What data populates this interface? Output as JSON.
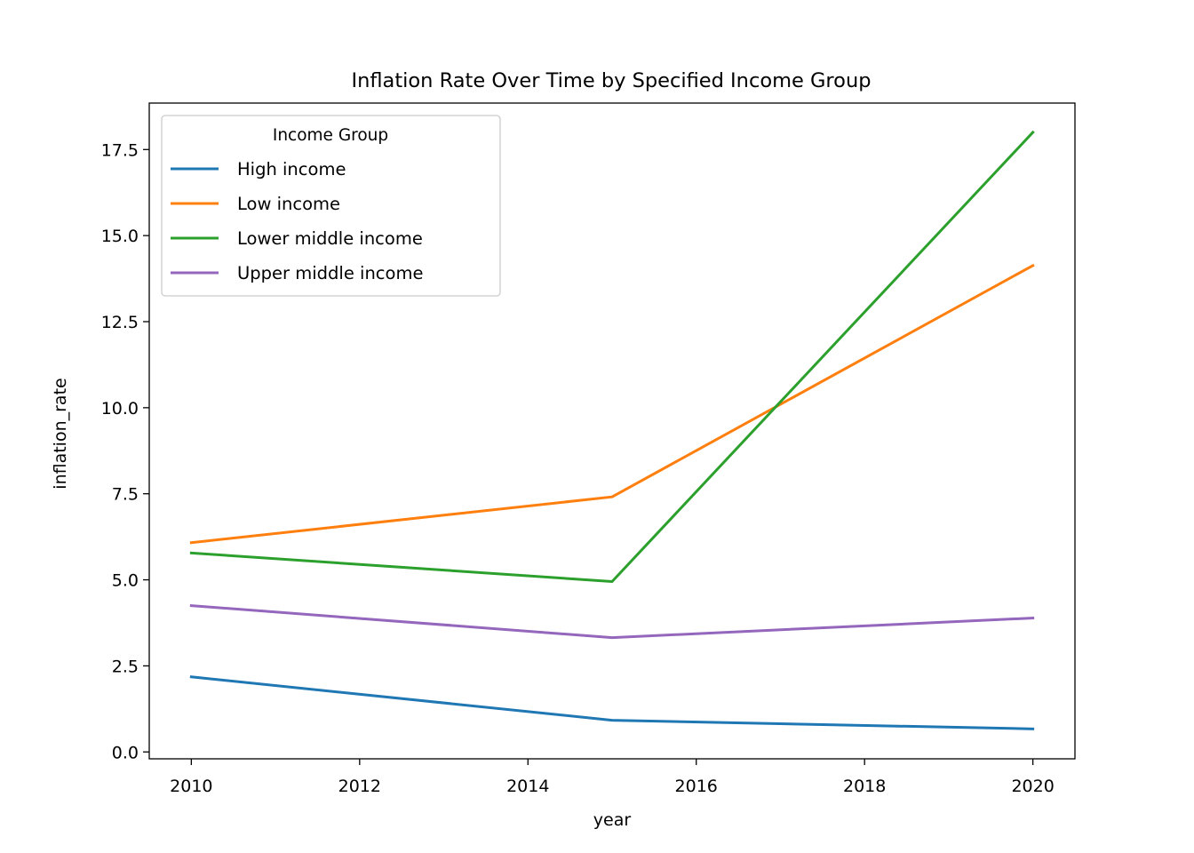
{
  "chart_data": {
    "type": "line",
    "title": "Inflation Rate Over Time by Specified Income Group",
    "xlabel": "year",
    "ylabel": "inflation_rate",
    "x": [
      2010,
      2015,
      2020
    ],
    "xlim": [
      2009.5,
      2020.5
    ],
    "ylim": [
      -0.2,
      18.85
    ],
    "xticks": [
      2010,
      2012,
      2014,
      2016,
      2018,
      2020
    ],
    "yticks": [
      0.0,
      2.5,
      5.0,
      7.5,
      10.0,
      12.5,
      15.0,
      17.5
    ],
    "ytick_labels": [
      "0.0",
      "2.5",
      "5.0",
      "7.5",
      "10.0",
      "12.5",
      "15.0",
      "17.5"
    ],
    "grid": false,
    "legend": {
      "title": "Income Group",
      "position": "top-left"
    },
    "series": [
      {
        "name": "High income",
        "color": "#1f77b4",
        "values": [
          2.18,
          0.92,
          0.67
        ]
      },
      {
        "name": "Low income",
        "color": "#ff7f0e",
        "values": [
          6.08,
          7.41,
          14.13
        ]
      },
      {
        "name": "Lower middle income",
        "color": "#2ca02c",
        "values": [
          5.78,
          4.95,
          18.0
        ]
      },
      {
        "name": "Upper middle income",
        "color": "#9467bd",
        "values": [
          4.25,
          3.32,
          3.89
        ]
      }
    ]
  }
}
